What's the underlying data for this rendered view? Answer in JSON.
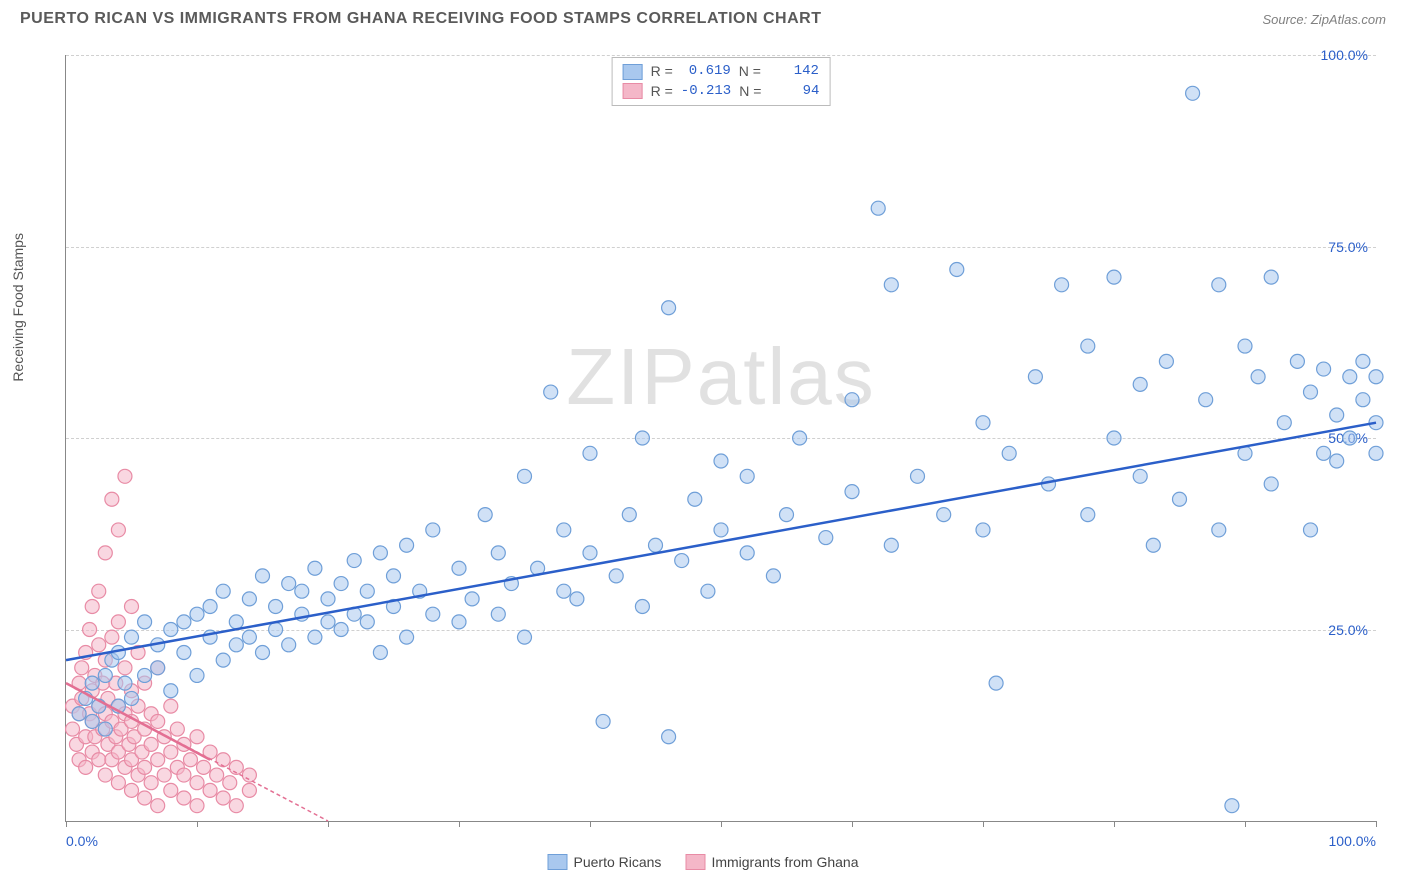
{
  "header": {
    "title": "PUERTO RICAN VS IMMIGRANTS FROM GHANA RECEIVING FOOD STAMPS CORRELATION CHART",
    "source_prefix": "Source: ",
    "source_name": "ZipAtlas.com"
  },
  "watermark": "ZIPatlas",
  "chart": {
    "type": "scatter",
    "ylabel": "Receiving Food Stamps",
    "xlim": [
      0,
      100
    ],
    "ylim": [
      0,
      100
    ],
    "xticks": [
      0,
      10,
      20,
      30,
      40,
      50,
      60,
      70,
      80,
      90,
      100
    ],
    "xtick_labels": {
      "0": "0.0%",
      "100": "100.0%"
    },
    "yticks": [
      25,
      50,
      75,
      100
    ],
    "ytick_labels": {
      "25": "25.0%",
      "50": "50.0%",
      "75": "75.0%",
      "100": "100.0%"
    },
    "grid_color": "#d0d0d0",
    "axis_color": "#888888",
    "background_color": "#ffffff",
    "label_color": "#2b5fc9",
    "marker_radius": 7,
    "marker_stroke_width": 1.2,
    "trend_line_width": 2.5,
    "series": [
      {
        "name": "Puerto Ricans",
        "fill": "#a9c8ee",
        "stroke": "#6f9fd8",
        "fill_opacity": 0.55,
        "R": "0.619",
        "N": "142",
        "trend": {
          "x1": 0,
          "y1": 21,
          "x2": 100,
          "y2": 52,
          "color": "#2b5fc9",
          "dash": "none"
        },
        "points": [
          [
            1,
            14
          ],
          [
            1.5,
            16
          ],
          [
            2,
            13
          ],
          [
            2,
            18
          ],
          [
            2.5,
            15
          ],
          [
            3,
            12
          ],
          [
            3,
            19
          ],
          [
            3.5,
            21
          ],
          [
            4,
            15
          ],
          [
            4,
            22
          ],
          [
            4.5,
            18
          ],
          [
            5,
            16
          ],
          [
            5,
            24
          ],
          [
            6,
            19
          ],
          [
            6,
            26
          ],
          [
            7,
            20
          ],
          [
            7,
            23
          ],
          [
            8,
            17
          ],
          [
            8,
            25
          ],
          [
            9,
            22
          ],
          [
            9,
            26
          ],
          [
            10,
            19
          ],
          [
            10,
            27
          ],
          [
            11,
            24
          ],
          [
            11,
            28
          ],
          [
            12,
            21
          ],
          [
            12,
            30
          ],
          [
            13,
            23
          ],
          [
            13,
            26
          ],
          [
            14,
            24
          ],
          [
            14,
            29
          ],
          [
            15,
            22
          ],
          [
            15,
            32
          ],
          [
            16,
            25
          ],
          [
            16,
            28
          ],
          [
            17,
            23
          ],
          [
            17,
            31
          ],
          [
            18,
            27
          ],
          [
            18,
            30
          ],
          [
            19,
            24
          ],
          [
            19,
            33
          ],
          [
            20,
            26
          ],
          [
            20,
            29
          ],
          [
            21,
            25
          ],
          [
            21,
            31
          ],
          [
            22,
            27
          ],
          [
            22,
            34
          ],
          [
            23,
            26
          ],
          [
            23,
            30
          ],
          [
            24,
            22
          ],
          [
            24,
            35
          ],
          [
            25,
            28
          ],
          [
            25,
            32
          ],
          [
            26,
            24
          ],
          [
            26,
            36
          ],
          [
            27,
            30
          ],
          [
            28,
            27
          ],
          [
            28,
            38
          ],
          [
            30,
            26
          ],
          [
            30,
            33
          ],
          [
            31,
            29
          ],
          [
            32,
            40
          ],
          [
            33,
            27
          ],
          [
            33,
            35
          ],
          [
            34,
            31
          ],
          [
            35,
            24
          ],
          [
            35,
            45
          ],
          [
            36,
            33
          ],
          [
            37,
            56
          ],
          [
            38,
            30
          ],
          [
            38,
            38
          ],
          [
            39,
            29
          ],
          [
            40,
            48
          ],
          [
            40,
            35
          ],
          [
            41,
            13
          ],
          [
            42,
            32
          ],
          [
            43,
            40
          ],
          [
            44,
            28
          ],
          [
            44,
            50
          ],
          [
            45,
            36
          ],
          [
            46,
            11
          ],
          [
            46,
            67
          ],
          [
            47,
            34
          ],
          [
            48,
            42
          ],
          [
            49,
            30
          ],
          [
            50,
            38
          ],
          [
            50,
            47
          ],
          [
            52,
            35
          ],
          [
            52,
            45
          ],
          [
            54,
            32
          ],
          [
            55,
            40
          ],
          [
            56,
            50
          ],
          [
            58,
            37
          ],
          [
            60,
            43
          ],
          [
            60,
            55
          ],
          [
            62,
            80
          ],
          [
            63,
            36
          ],
          [
            63,
            70
          ],
          [
            65,
            45
          ],
          [
            67,
            40
          ],
          [
            68,
            72
          ],
          [
            70,
            38
          ],
          [
            70,
            52
          ],
          [
            71,
            18
          ],
          [
            72,
            48
          ],
          [
            74,
            58
          ],
          [
            75,
            44
          ],
          [
            76,
            70
          ],
          [
            78,
            40
          ],
          [
            78,
            62
          ],
          [
            80,
            50
          ],
          [
            80,
            71
          ],
          [
            82,
            45
          ],
          [
            82,
            57
          ],
          [
            83,
            36
          ],
          [
            84,
            60
          ],
          [
            85,
            42
          ],
          [
            86,
            95
          ],
          [
            87,
            55
          ],
          [
            88,
            38
          ],
          [
            88,
            70
          ],
          [
            89,
            2
          ],
          [
            90,
            48
          ],
          [
            90,
            62
          ],
          [
            91,
            58
          ],
          [
            92,
            44
          ],
          [
            92,
            71
          ],
          [
            93,
            52
          ],
          [
            94,
            60
          ],
          [
            95,
            38
          ],
          [
            95,
            56
          ],
          [
            96,
            48
          ],
          [
            96,
            59
          ],
          [
            97,
            53
          ],
          [
            97,
            47
          ],
          [
            98,
            50
          ],
          [
            98,
            58
          ],
          [
            99,
            60
          ],
          [
            99,
            55
          ],
          [
            100,
            52
          ],
          [
            100,
            48
          ],
          [
            100,
            58
          ]
        ]
      },
      {
        "name": "Immigrants from Ghana",
        "fill": "#f4b7c8",
        "stroke": "#e88ba5",
        "fill_opacity": 0.55,
        "R": "-0.213",
        "N": "94",
        "trend": {
          "x1": 0,
          "y1": 18,
          "x2": 20,
          "y2": 0,
          "color": "#e36f93",
          "dash": "4,3"
        },
        "trend_solid": {
          "x1": 0,
          "y1": 18,
          "x2": 11,
          "y2": 8,
          "color": "#e36f93"
        },
        "points": [
          [
            0.5,
            12
          ],
          [
            0.5,
            15
          ],
          [
            0.8,
            10
          ],
          [
            1,
            14
          ],
          [
            1,
            18
          ],
          [
            1,
            8
          ],
          [
            1.2,
            16
          ],
          [
            1.2,
            20
          ],
          [
            1.5,
            11
          ],
          [
            1.5,
            22
          ],
          [
            1.5,
            7
          ],
          [
            1.8,
            14
          ],
          [
            1.8,
            25
          ],
          [
            2,
            9
          ],
          [
            2,
            17
          ],
          [
            2,
            13
          ],
          [
            2,
            28
          ],
          [
            2.2,
            11
          ],
          [
            2.2,
            19
          ],
          [
            2.5,
            8
          ],
          [
            2.5,
            15
          ],
          [
            2.5,
            23
          ],
          [
            2.5,
            30
          ],
          [
            2.8,
            12
          ],
          [
            2.8,
            18
          ],
          [
            3,
            6
          ],
          [
            3,
            14
          ],
          [
            3,
            21
          ],
          [
            3,
            35
          ],
          [
            3.2,
            10
          ],
          [
            3.2,
            16
          ],
          [
            3.5,
            8
          ],
          [
            3.5,
            13
          ],
          [
            3.5,
            24
          ],
          [
            3.5,
            42
          ],
          [
            3.8,
            11
          ],
          [
            3.8,
            18
          ],
          [
            4,
            5
          ],
          [
            4,
            9
          ],
          [
            4,
            15
          ],
          [
            4,
            26
          ],
          [
            4,
            38
          ],
          [
            4.2,
            12
          ],
          [
            4.5,
            7
          ],
          [
            4.5,
            14
          ],
          [
            4.5,
            20
          ],
          [
            4.5,
            45
          ],
          [
            4.8,
            10
          ],
          [
            5,
            4
          ],
          [
            5,
            8
          ],
          [
            5,
            13
          ],
          [
            5,
            17
          ],
          [
            5,
            28
          ],
          [
            5.2,
            11
          ],
          [
            5.5,
            6
          ],
          [
            5.5,
            15
          ],
          [
            5.5,
            22
          ],
          [
            5.8,
            9
          ],
          [
            6,
            3
          ],
          [
            6,
            7
          ],
          [
            6,
            12
          ],
          [
            6,
            18
          ],
          [
            6.5,
            5
          ],
          [
            6.5,
            10
          ],
          [
            6.5,
            14
          ],
          [
            7,
            2
          ],
          [
            7,
            8
          ],
          [
            7,
            13
          ],
          [
            7,
            20
          ],
          [
            7.5,
            6
          ],
          [
            7.5,
            11
          ],
          [
            8,
            4
          ],
          [
            8,
            9
          ],
          [
            8,
            15
          ],
          [
            8.5,
            7
          ],
          [
            8.5,
            12
          ],
          [
            9,
            3
          ],
          [
            9,
            10
          ],
          [
            9,
            6
          ],
          [
            9.5,
            8
          ],
          [
            10,
            5
          ],
          [
            10,
            11
          ],
          [
            10,
            2
          ],
          [
            10.5,
            7
          ],
          [
            11,
            9
          ],
          [
            11,
            4
          ],
          [
            11.5,
            6
          ],
          [
            12,
            8
          ],
          [
            12,
            3
          ],
          [
            12.5,
            5
          ],
          [
            13,
            7
          ],
          [
            13,
            2
          ],
          [
            14,
            4
          ],
          [
            14,
            6
          ]
        ]
      }
    ]
  },
  "legend_bottom": [
    {
      "label": "Puerto Ricans",
      "fill": "#a9c8ee",
      "stroke": "#6f9fd8"
    },
    {
      "label": "Immigrants from Ghana",
      "fill": "#f4b7c8",
      "stroke": "#e88ba5"
    }
  ]
}
